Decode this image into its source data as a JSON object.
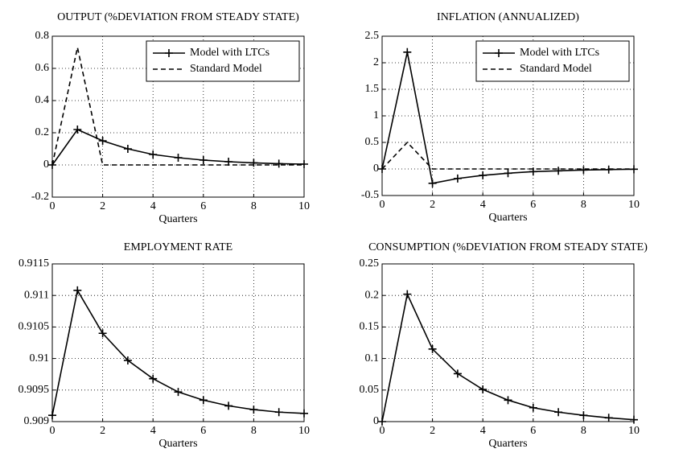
{
  "chart_data": [
    {
      "type": "line",
      "title": "OUTPUT (%DEVIATION FROM STEADY STATE)",
      "xlabel": "Quarters",
      "x": [
        0,
        1,
        2,
        3,
        4,
        5,
        6,
        7,
        8,
        9,
        10
      ],
      "xlim": [
        0,
        10
      ],
      "xticks": [
        0,
        2,
        4,
        6,
        8,
        10
      ],
      "ylim": [
        -0.2,
        0.8
      ],
      "yticks": [
        -0.2,
        0,
        0.2,
        0.4,
        0.6,
        0.8
      ],
      "grid": true,
      "legend": "upper right",
      "series": [
        {
          "name": "Model with LTCs",
          "color": "#000000",
          "linestyle": "solid",
          "marker": "+",
          "values": [
            0,
            0.22,
            0.15,
            0.1,
            0.065,
            0.045,
            0.03,
            0.02,
            0.013,
            0.008,
            0.005
          ]
        },
        {
          "name": "Standard Model",
          "color": "#000000",
          "linestyle": "dashed",
          "marker": null,
          "values": [
            0,
            0.73,
            0,
            0,
            0,
            0,
            0,
            0,
            0,
            0,
            0
          ]
        }
      ]
    },
    {
      "type": "line",
      "title": "INFLATION (ANNUALIZED)",
      "xlabel": "Quarters",
      "x": [
        0,
        1,
        2,
        3,
        4,
        5,
        6,
        7,
        8,
        9,
        10
      ],
      "xlim": [
        0,
        10
      ],
      "xticks": [
        0,
        2,
        4,
        6,
        8,
        10
      ],
      "ylim": [
        -0.5,
        2.5
      ],
      "yticks": [
        -0.5,
        0,
        0.5,
        1,
        1.5,
        2,
        2.5
      ],
      "grid": true,
      "legend": "upper right",
      "series": [
        {
          "name": "Model with LTCs",
          "color": "#000000",
          "linestyle": "solid",
          "marker": "+",
          "values": [
            0,
            2.2,
            -0.27,
            -0.18,
            -0.12,
            -0.08,
            -0.05,
            -0.035,
            -0.02,
            -0.012,
            -0.005
          ]
        },
        {
          "name": "Standard Model",
          "color": "#000000",
          "linestyle": "dashed",
          "marker": null,
          "values": [
            0,
            0.5,
            0,
            0,
            0,
            0,
            0,
            0,
            0,
            0,
            0
          ]
        }
      ]
    },
    {
      "type": "line",
      "title": "EMPLOYMENT RATE",
      "xlabel": "Quarters",
      "x": [
        0,
        1,
        2,
        3,
        4,
        5,
        6,
        7,
        8,
        9,
        10
      ],
      "xlim": [
        0,
        10
      ],
      "xticks": [
        0,
        2,
        4,
        6,
        8,
        10
      ],
      "ylim": [
        0.909,
        0.9115
      ],
      "yticks": [
        0.909,
        0.9095,
        0.91,
        0.9105,
        0.911,
        0.9115
      ],
      "grid": true,
      "series": [
        {
          "color": "#000000",
          "linestyle": "solid",
          "marker": "+",
          "values": [
            0.9091,
            0.91108,
            0.9104,
            0.90997,
            0.90968,
            0.90947,
            0.90934,
            0.90925,
            0.90919,
            0.90915,
            0.90913
          ]
        }
      ]
    },
    {
      "type": "line",
      "title": "CONSUMPTION (%DEVIATION FROM STEADY STATE)",
      "xlabel": "Quarters",
      "x": [
        0,
        1,
        2,
        3,
        4,
        5,
        6,
        7,
        8,
        9,
        10
      ],
      "xlim": [
        0,
        10
      ],
      "xticks": [
        0,
        2,
        4,
        6,
        8,
        10
      ],
      "ylim": [
        0,
        0.25
      ],
      "yticks": [
        0,
        0.05,
        0.1,
        0.15,
        0.2,
        0.25
      ],
      "grid": true,
      "series": [
        {
          "color": "#000000",
          "linestyle": "solid",
          "marker": "+",
          "values": [
            0,
            0.202,
            0.115,
            0.076,
            0.051,
            0.034,
            0.022,
            0.015,
            0.01,
            0.006,
            0.003
          ]
        }
      ]
    }
  ]
}
